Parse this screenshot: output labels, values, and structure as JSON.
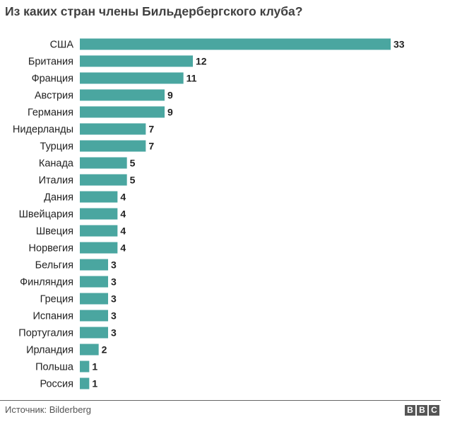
{
  "title": "Из каких стран члены Бильдербергского клуба?",
  "source": "Источник: Bilderberg",
  "logo": {
    "letters": [
      "B",
      "B",
      "C"
    ]
  },
  "colors": {
    "bar": "#4aa6a0",
    "text": "#222222",
    "title": "#404040",
    "logo": "#555555"
  },
  "chart_data": {
    "type": "bar",
    "orientation": "horizontal",
    "title": "Из каких стран члены Бильдербергского клуба?",
    "categories": [
      "США",
      "Британия",
      "Франция",
      "Австрия",
      "Германия",
      "Нидерланды",
      "Турция",
      "Канада",
      "Италия",
      "Дания",
      "Швейцария",
      "Швеция",
      "Норвегия",
      "Бельгия",
      "Финляндия",
      "Греция",
      "Испания",
      "Португалия",
      "Ирландия",
      "Польша",
      "Россия"
    ],
    "values": [
      33,
      12,
      11,
      9,
      9,
      7,
      7,
      5,
      5,
      4,
      4,
      4,
      4,
      3,
      3,
      3,
      3,
      3,
      2,
      1,
      1
    ],
    "xlim": [
      0,
      33
    ],
    "grid": false,
    "legend": "none",
    "data_labels": true
  }
}
